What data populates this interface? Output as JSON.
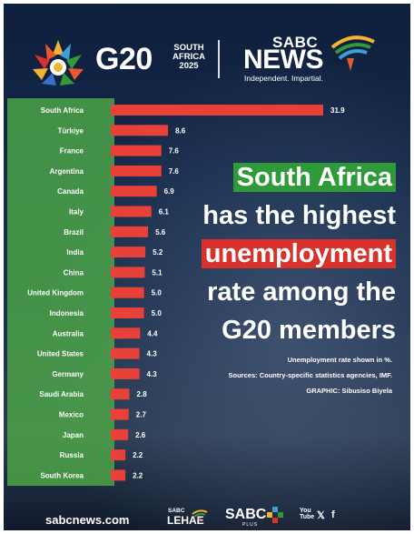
{
  "header": {
    "g20_text": "G20",
    "g20_sub_1": "SOUTH",
    "g20_sub_2": "AFRICA",
    "g20_sub_3": "2025",
    "sabc": "SABC",
    "news": "NEWS",
    "tagline": "Independent. Impartial."
  },
  "headline": {
    "line1": "South Africa",
    "line2": "has the highest",
    "line3": "unemployment",
    "line4": "rate among the",
    "line5": "G20 members"
  },
  "notes": {
    "unit": "Unemployment rate shown in %.",
    "sources": "Sources: Country-specific statistics agencies, IMF.",
    "graphic": "GRAPHIC: Sibusiso Biyela"
  },
  "footer": {
    "url": "sabcnews.com",
    "lehae_sabc": "SABC",
    "lehae": "LEHAE",
    "sabcplus": "SABC",
    "plus_mini": "PLUS",
    "youtube": "You Tube",
    "x": "𝕏",
    "facebook": "f"
  },
  "colors": {
    "bar": "#e8413a",
    "green_panel": "#4ea848",
    "highlight_green": "#2e9a3a",
    "highlight_red": "#d8322b",
    "background": "#15294a"
  },
  "chart_data": {
    "type": "bar",
    "orientation": "horizontal",
    "categories": [
      "South Africa",
      "Türkiye",
      "France",
      "Argentina",
      "Canada",
      "Italy",
      "Brazil",
      "India",
      "China",
      "United Kingdom",
      "Indonesia",
      "Australia",
      "United States",
      "Germany",
      "Saudi Arabia",
      "Mexico",
      "Japan",
      "Russia",
      "South Korea"
    ],
    "values": [
      31.9,
      8.6,
      7.6,
      7.6,
      6.9,
      6.1,
      5.6,
      5.2,
      5.1,
      5.0,
      5.0,
      4.4,
      4.3,
      4.3,
      2.8,
      2.7,
      2.6,
      2.2,
      2.2
    ],
    "labels": [
      "31.9",
      "8.6",
      "7.6",
      "7.6",
      "6.9",
      "6.1",
      "5.6",
      "5.2",
      "5.1",
      "5.0",
      "5.0",
      "4.4",
      "4.3",
      "4.3",
      "2.8",
      "2.7",
      "2.6",
      "2.2",
      "2.2"
    ],
    "xlim": [
      0,
      31.9
    ],
    "grid": false,
    "legend": "none"
  }
}
